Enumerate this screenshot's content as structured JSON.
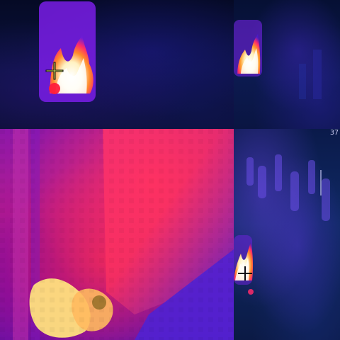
{
  "image": {
    "type": "thermal-collage",
    "tiles": [
      {
        "name": "top-left",
        "subject": "fire",
        "palette": "ironbow"
      },
      {
        "name": "top-right",
        "subject": "fire",
        "palette": "ironbow"
      },
      {
        "name": "bottom-left",
        "subject": "close-up-hot-object",
        "palette": "ironbow"
      },
      {
        "name": "bottom-right",
        "subject": "crowd-with-fire",
        "palette": "ironbow",
        "hud_text": "37"
      }
    ],
    "colors": {
      "cold": "#0b1340",
      "mid": "#6a2bd8",
      "warm": "#ff2a6a",
      "hot": "#fff1c2"
    }
  }
}
